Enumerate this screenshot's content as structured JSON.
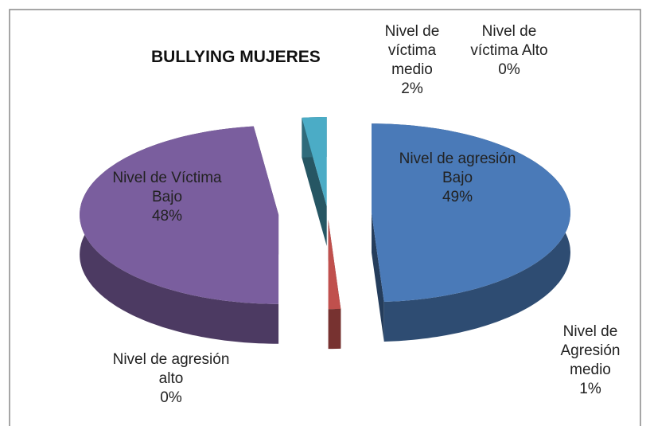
{
  "chart_data": {
    "type": "pie3d",
    "title": "BULLYING MUJERES",
    "categories": [
      "Nivel de agresión Bajo",
      "Nivel de Agresión medio",
      "Nivel de agresión alto",
      "Nivel de Víctima Bajo",
      "Nivel de víctima medio",
      "Nivel de víctima Alto"
    ],
    "values": [
      49,
      1,
      0,
      48,
      2,
      0
    ],
    "value_labels": [
      "49%",
      "1%",
      "0%",
      "48%",
      "2%",
      "0%"
    ],
    "colors": [
      "#4a7ab8",
      "#c0504d",
      "#9bbb59",
      "#7a5e9e",
      "#4bacc6",
      "#f79646"
    ]
  }
}
